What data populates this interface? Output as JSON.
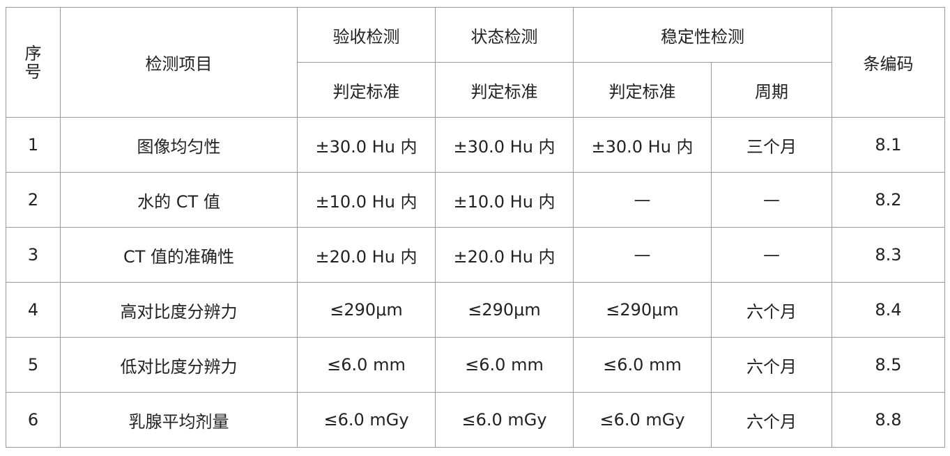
{
  "header": {
    "seq": "序号",
    "item": "检测项目",
    "acceptance": "验收检测",
    "status": "状态检测",
    "stability": "稳定性检测",
    "criterion": "判定标准",
    "period": "周期",
    "clause": "条编码"
  },
  "rows": [
    {
      "no": "1",
      "item": "图像均匀性",
      "acceptance": "±30.0 Hu 内",
      "status": "±30.0 Hu 内",
      "stability": "±30.0 Hu 内",
      "period": "三个月",
      "clause": "8.1"
    },
    {
      "no": "2",
      "item": "水的 CT 值",
      "acceptance": "±10.0 Hu 内",
      "status": "±10.0 Hu 内",
      "stability": "—",
      "period": "—",
      "clause": "8.2"
    },
    {
      "no": "3",
      "item": "CT 值的准确性",
      "acceptance": "±20.0 Hu 内",
      "status": "±20.0 Hu 内",
      "stability": "—",
      "period": "—",
      "clause": "8.3"
    },
    {
      "no": "4",
      "item": "高对比度分辨力",
      "acceptance": "≤290μm",
      "status": "≤290μm",
      "stability": "≤290μm",
      "period": "六个月",
      "clause": "8.4"
    },
    {
      "no": "5",
      "item": "低对比度分辨力",
      "acceptance": "≤6.0 mm",
      "status": "≤6.0 mm",
      "stability": "≤6.0 mm",
      "period": "六个月",
      "clause": "8.5"
    },
    {
      "no": "6",
      "item": "乳腺平均剂量",
      "acceptance": "≤6.0 mGy",
      "status": "≤6.0 mGy",
      "stability": "≤6.0 mGy",
      "period": "六个月",
      "clause": "8.8"
    }
  ]
}
